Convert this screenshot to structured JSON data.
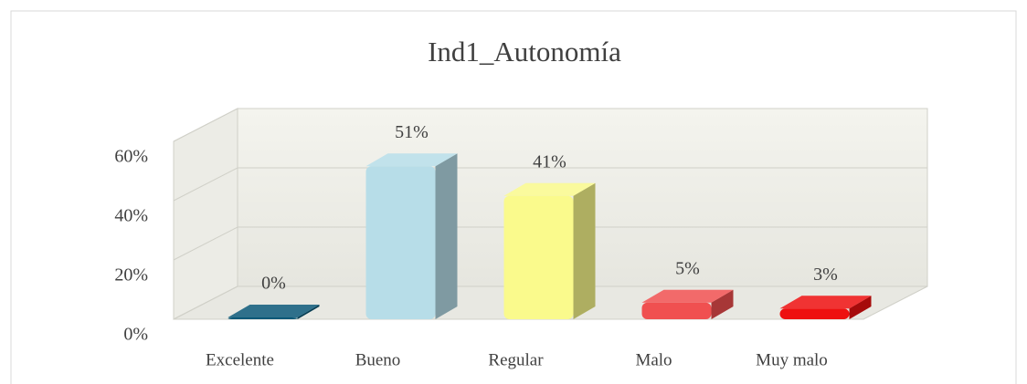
{
  "chart_data": {
    "type": "bar3d",
    "title": "Ind1_Autonomía",
    "categories": [
      "Excelente",
      "Bueno",
      "Regular",
      "Malo",
      "Muy malo"
    ],
    "values": [
      0,
      51,
      41,
      5,
      3
    ],
    "value_labels": [
      "0%",
      "51%",
      "41%",
      "5%",
      "3%"
    ],
    "colors": [
      "#0b5877",
      "#b7dde8",
      "#fafa8c",
      "#f05050",
      "#ee1010"
    ],
    "ylim": [
      0,
      60
    ],
    "yticks": [
      {
        "value": 0,
        "label": "0%"
      },
      {
        "value": 20,
        "label": "20%"
      },
      {
        "value": 40,
        "label": "40%"
      },
      {
        "value": 60,
        "label": "60%"
      }
    ],
    "grid": true
  }
}
